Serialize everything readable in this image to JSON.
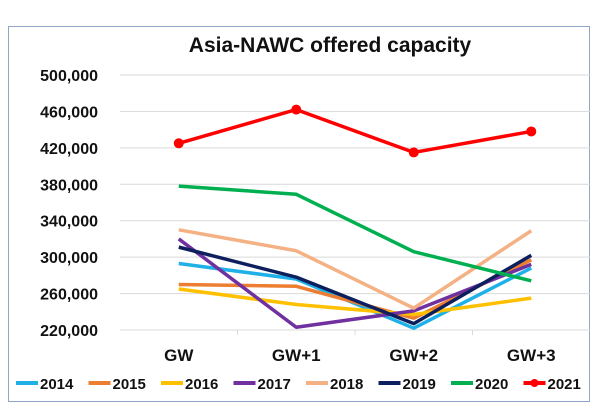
{
  "chart_data": {
    "type": "line",
    "title": "Asia-NAWC offered capacity",
    "xlabel": "",
    "ylabel": "",
    "categories": [
      "GW",
      "GW+1",
      "GW+2",
      "GW+3"
    ],
    "ylim": [
      220000,
      500000
    ],
    "yticks": [
      220000,
      260000,
      300000,
      340000,
      380000,
      420000,
      460000,
      500000
    ],
    "ytick_labels": [
      "220,000",
      "260,000",
      "300,000",
      "340,000",
      "380,000",
      "420,000",
      "460,000",
      "500,000"
    ],
    "grid": true,
    "legend_position": "bottom",
    "series": [
      {
        "name": "2014",
        "color": "#1fb0e8",
        "markers": false,
        "values": [
          293000,
          276000,
          222000,
          288000
        ]
      },
      {
        "name": "2015",
        "color": "#ed7d31",
        "markers": false,
        "values": [
          270000,
          268000,
          233000,
          297000
        ]
      },
      {
        "name": "2016",
        "color": "#ffc000",
        "markers": false,
        "values": [
          265000,
          248000,
          237000,
          255000
        ]
      },
      {
        "name": "2017",
        "color": "#7030a0",
        "markers": false,
        "values": [
          320000,
          223000,
          241000,
          292000
        ]
      },
      {
        "name": "2018",
        "color": "#f4b183",
        "markers": false,
        "values": [
          330000,
          307000,
          244000,
          329000
        ]
      },
      {
        "name": "2019",
        "color": "#0d1f5c",
        "markers": false,
        "values": [
          311000,
          278000,
          227000,
          302000
        ]
      },
      {
        "name": "2020",
        "color": "#00b050",
        "markers": false,
        "values": [
          378000,
          369000,
          306000,
          274000
        ]
      },
      {
        "name": "2021",
        "color": "#ff0000",
        "markers": true,
        "values": [
          425000,
          462000,
          415000,
          438000
        ]
      }
    ]
  }
}
